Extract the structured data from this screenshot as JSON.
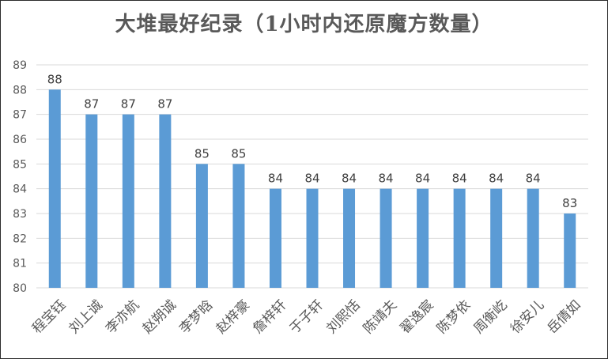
{
  "chart_data": {
    "type": "bar",
    "title": "大堆最好纪录（1小时内还原魔方数量）",
    "categories": [
      "程宝钰",
      "刘上诚",
      "李亦航",
      "赵朔诚",
      "李梦晗",
      "赵梓豪",
      "詹梓轩",
      "于子轩",
      "刘熙恬",
      "陈靖夫",
      "翟逸宸",
      "陈梦依",
      "周衡屹",
      "徐安儿",
      "岳倩如"
    ],
    "values": [
      88,
      87,
      87,
      87,
      85,
      85,
      84,
      84,
      84,
      84,
      84,
      84,
      84,
      84,
      83
    ],
    "xlabel": "",
    "ylabel": "",
    "ylim": [
      80,
      89
    ],
    "yticks": [
      80,
      81,
      82,
      83,
      84,
      85,
      86,
      87,
      88,
      89
    ],
    "grid": true,
    "legend": "none",
    "bar_color": "#5b9bd5",
    "grid_color": "#d9d9d9"
  }
}
